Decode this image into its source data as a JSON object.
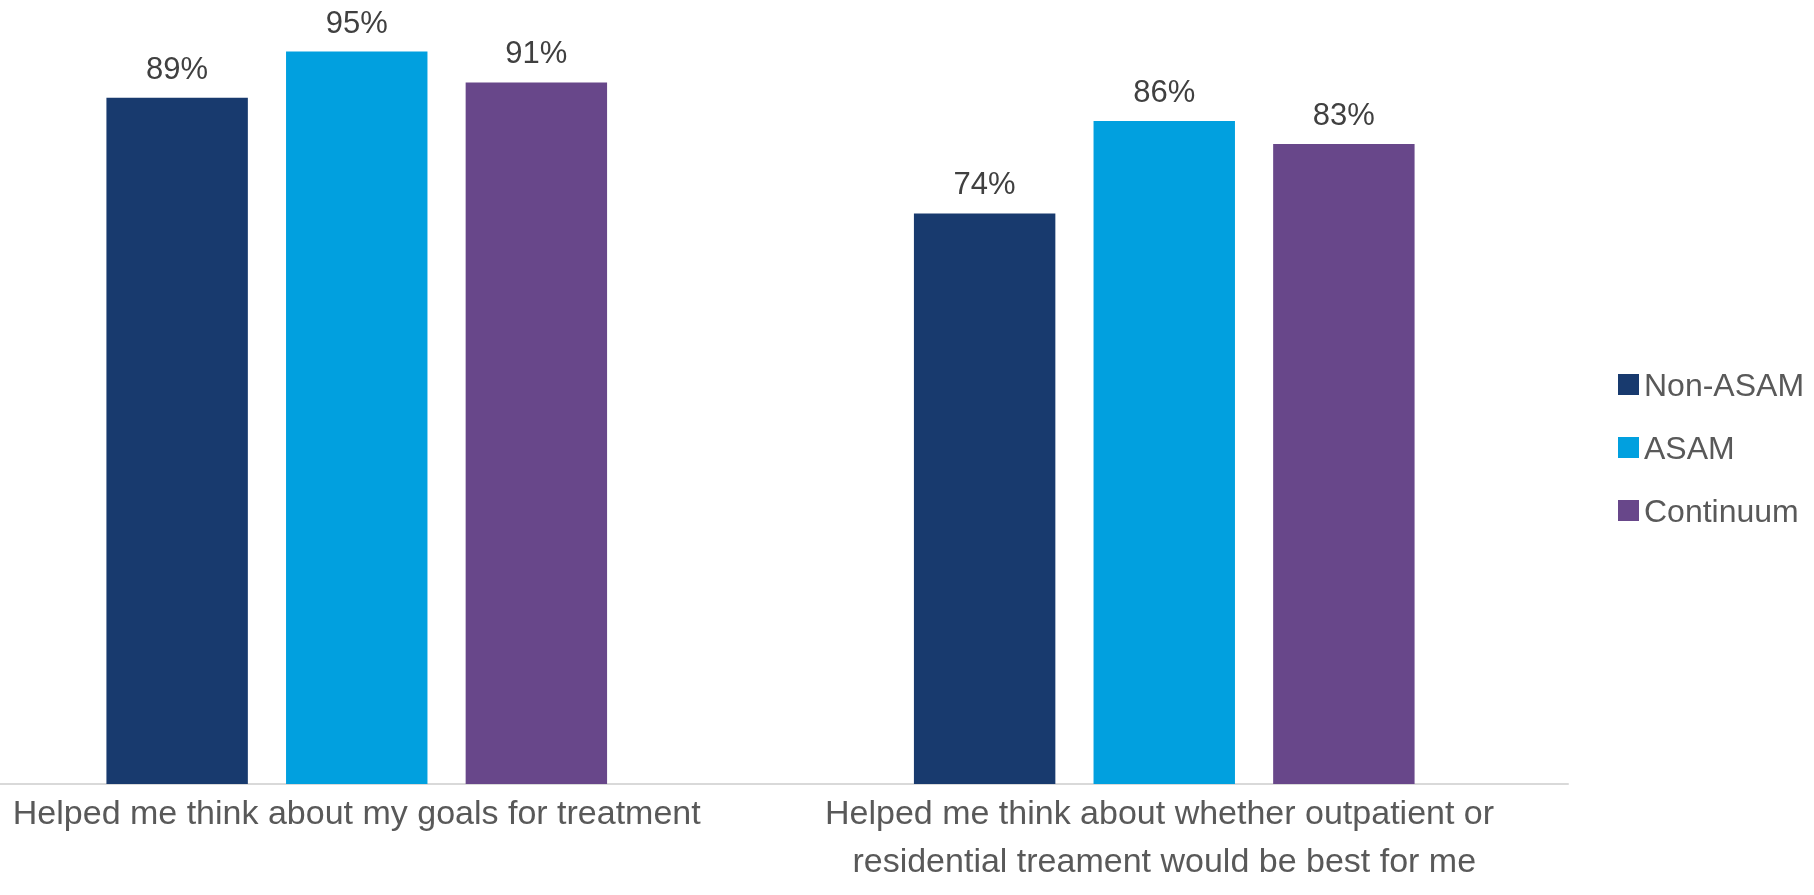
{
  "chart_data": {
    "type": "bar",
    "categories": [
      "Helped me think about my goals for treatment",
      "Helped me think about whether outpatient or residential treament would be best for me"
    ],
    "series": [
      {
        "name": "Non-ASAM",
        "color": "#183a6e",
        "values": [
          89,
          74
        ],
        "value_labels": [
          "89%",
          "74%"
        ]
      },
      {
        "name": "ASAM",
        "color": "#01a0df",
        "values": [
          95,
          86
        ],
        "value_labels": [
          "95%",
          "86%"
        ]
      },
      {
        "name": "Continuum",
        "color": "#68478a",
        "values": [
          91,
          83
        ],
        "value_labels": [
          "91%",
          "83%"
        ]
      }
    ],
    "legend": "right"
  }
}
